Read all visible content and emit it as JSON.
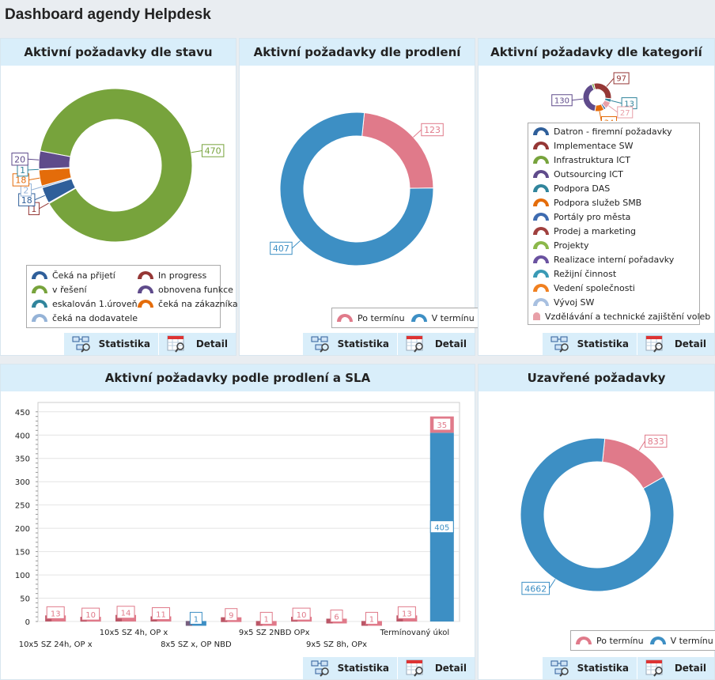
{
  "title": "Dashboard agendy Helpdesk",
  "buttons": {
    "stats": "Statistika",
    "detail": "Detail"
  },
  "panels": {
    "status": {
      "title": "Aktivní požadavky dle stavu",
      "chart_data": {
        "type": "pie",
        "donut": true,
        "slices": [
          {
            "label": "v řešení",
            "value": 470,
            "color": "#77a33c"
          },
          {
            "label": "In progress",
            "value": 1,
            "color": "#953735"
          },
          {
            "label": "Čeká na přijetí",
            "value": 18,
            "color": "#2f5f9a"
          },
          {
            "label": "čeká na dodavatele",
            "value": 2,
            "color": "#95b3d7"
          },
          {
            "label": "čeká na zákazníka",
            "value": 18,
            "color": "#e46c0a"
          },
          {
            "label": "eskalován 1.úroveň",
            "value": 1,
            "color": "#31859c"
          },
          {
            "label": "obnovena funkce",
            "value": 20,
            "color": "#5f4b8b"
          }
        ]
      },
      "legend": [
        {
          "label": "Čeká na přijetí",
          "color": "#2f5f9a"
        },
        {
          "label": "In progress",
          "color": "#953735"
        },
        {
          "label": "v řešení",
          "color": "#77a33c"
        },
        {
          "label": "obnovena funkce",
          "color": "#5f4b8b"
        },
        {
          "label": "eskalován 1.úroveň",
          "color": "#31859c"
        },
        {
          "label": "čeká na zákazníka",
          "color": "#e46c0a"
        },
        {
          "label": "čeká na dodavatele",
          "color": "#95b3d7"
        }
      ]
    },
    "delay": {
      "title": "Aktivní požadavky dle prodlení",
      "chart_data": {
        "type": "pie",
        "donut": true,
        "slices": [
          {
            "label": "Po termínu",
            "value": 123,
            "color": "#e07a8a"
          },
          {
            "label": "V termínu",
            "value": 407,
            "color": "#3d8fc4"
          }
        ]
      },
      "legend": [
        {
          "label": "Po termínu",
          "color": "#e07a8a"
        },
        {
          "label": "V termínu",
          "color": "#3d8fc4"
        }
      ]
    },
    "category": {
      "title": "Aktivní požadavky dle kategorií",
      "chart_data": {
        "type": "pie",
        "donut": true,
        "slices": [
          {
            "label": "Projekty",
            "value": null,
            "color": "#77a33c"
          },
          {
            "label": "Implementace SW",
            "value": 97,
            "color": "#953735"
          },
          {
            "label": "Vedení společnosti",
            "value": 13,
            "color": "#31859c"
          },
          {
            "label": "Vzdělávání a technické zajištění voleb",
            "value": 27,
            "color": "#e8a0a8"
          },
          {
            "label": "Portály pro města",
            "value": null,
            "color": "#2f5f9a"
          },
          {
            "label": "Podpora služeb SMB",
            "value": 34,
            "color": "#e46c0a"
          },
          {
            "label": "Realizace interní pořadavky",
            "value": 130,
            "color": "#5f4b8b"
          }
        ]
      },
      "legend": [
        {
          "label": "Datron - firemní požadavky",
          "color": "#2f5f9a"
        },
        {
          "label": "Implementace SW",
          "color": "#953735"
        },
        {
          "label": "Infrastruktura ICT",
          "color": "#77a33c"
        },
        {
          "label": "Outsourcing ICT",
          "color": "#5f4b8b"
        },
        {
          "label": "Podpora DAS",
          "color": "#31859c"
        },
        {
          "label": "Podpora služeb SMB",
          "color": "#e46c0a"
        },
        {
          "label": "Portály pro města",
          "color": "#3e6bb0"
        },
        {
          "label": "Prodej a marketing",
          "color": "#a0403e"
        },
        {
          "label": "Projekty",
          "color": "#8cb84a"
        },
        {
          "label": "Realizace interní pořadavky",
          "color": "#6a52a0"
        },
        {
          "label": "Režijní činnost",
          "color": "#3a9ab5"
        },
        {
          "label": "Vedení společnosti",
          "color": "#f08020"
        },
        {
          "label": "Vývoj SW",
          "color": "#a8c0e0"
        },
        {
          "label": "Vzdělávání a technické zajištění voleb",
          "color": "#e8a0a8"
        }
      ]
    },
    "sla": {
      "title": "Aktivní požadavky podle prodlení a SLA",
      "chart_data": {
        "type": "bar",
        "stacked": true,
        "ylim": [
          0,
          470
        ],
        "yticks": [
          0,
          50,
          100,
          150,
          200,
          250,
          300,
          350,
          400,
          450
        ],
        "grid": true,
        "categories": [
          "10x5 SZ 24h, OP x",
          "",
          "10x5 SZ 4h, OP x",
          "",
          "8x5 SZ x, OP NBD",
          "",
          "9x5 SZ 2NBD OPx",
          "",
          "9x5 SZ 8h, OPx",
          "",
          "Termínovaný úkol",
          ""
        ],
        "series": [
          {
            "name": "V termínu",
            "color": "#3d8fc4",
            "values": [
              0,
              0,
              0,
              0,
              1,
              0,
              0,
              0,
              0,
              0,
              0,
              405
            ]
          },
          {
            "name": "Po termínu",
            "color": "#e07a8a",
            "values": [
              13,
              10,
              14,
              11,
              0,
              9,
              1,
              10,
              6,
              1,
              13,
              35
            ]
          }
        ]
      }
    },
    "closed": {
      "title": "Uzavřené požadavky",
      "chart_data": {
        "type": "pie",
        "donut": true,
        "slices": [
          {
            "label": "Po termínu",
            "value": 833,
            "color": "#e07a8a"
          },
          {
            "label": "V termínu",
            "value": 4662,
            "color": "#3d8fc4"
          }
        ]
      },
      "legend": [
        {
          "label": "Po termínu",
          "color": "#e07a8a"
        },
        {
          "label": "V termínu",
          "color": "#3d8fc4"
        }
      ]
    }
  }
}
